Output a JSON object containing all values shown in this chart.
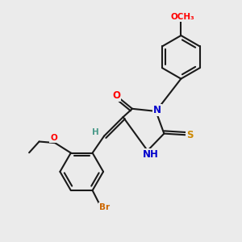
{
  "bg_color": "#ebebeb",
  "bond_color": "#1a1a1a",
  "bond_width": 1.5,
  "atom_colors": {
    "O": "#ff0000",
    "N": "#0000cc",
    "S": "#cc8800",
    "Br": "#cc6600",
    "C": "#1a1a1a",
    "H": "#4a9a8a"
  },
  "font_size_atom": 8.5,
  "font_size_small": 7.5,
  "font_size_subscript": 6.0
}
